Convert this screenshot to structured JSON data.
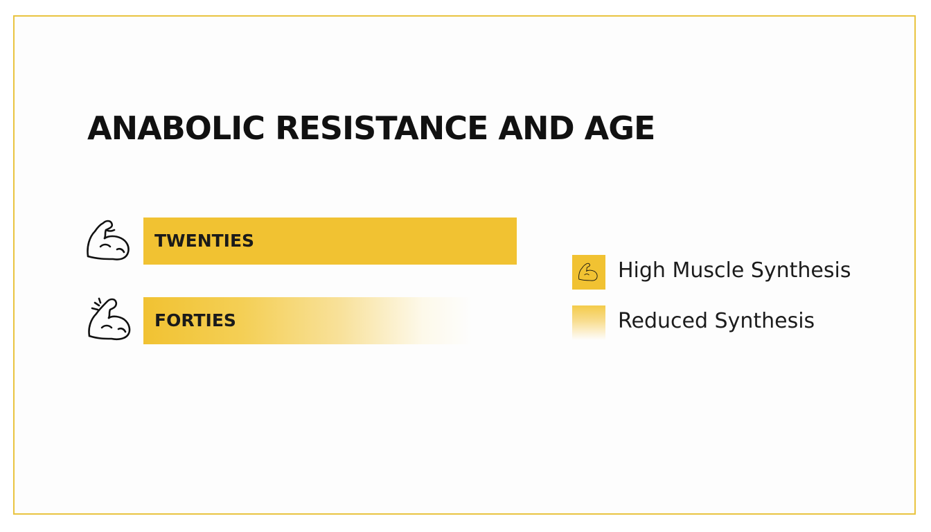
{
  "chart_data": {
    "type": "bar",
    "title": "ANABOLIC RESISTANCE AND AGE",
    "categories": [
      "TWENTIES",
      "FORTIES"
    ],
    "values": [
      1.0,
      0.88
    ],
    "bar_styles": [
      "solid",
      "fading"
    ],
    "legend": [
      {
        "label": "High Muscle Synthesis",
        "style": "solid",
        "icon": "flexed-arm-icon"
      },
      {
        "label": "Reduced Synthesis",
        "style": "fading"
      }
    ],
    "legend_position": "right",
    "grid": false
  },
  "colors": {
    "accent": "#f1c232",
    "frame": "#e9c440",
    "text": "#111111"
  },
  "icons": {
    "row_1": "flexed-arm-icon",
    "row_2": "flexed-arm-strain-icon"
  }
}
